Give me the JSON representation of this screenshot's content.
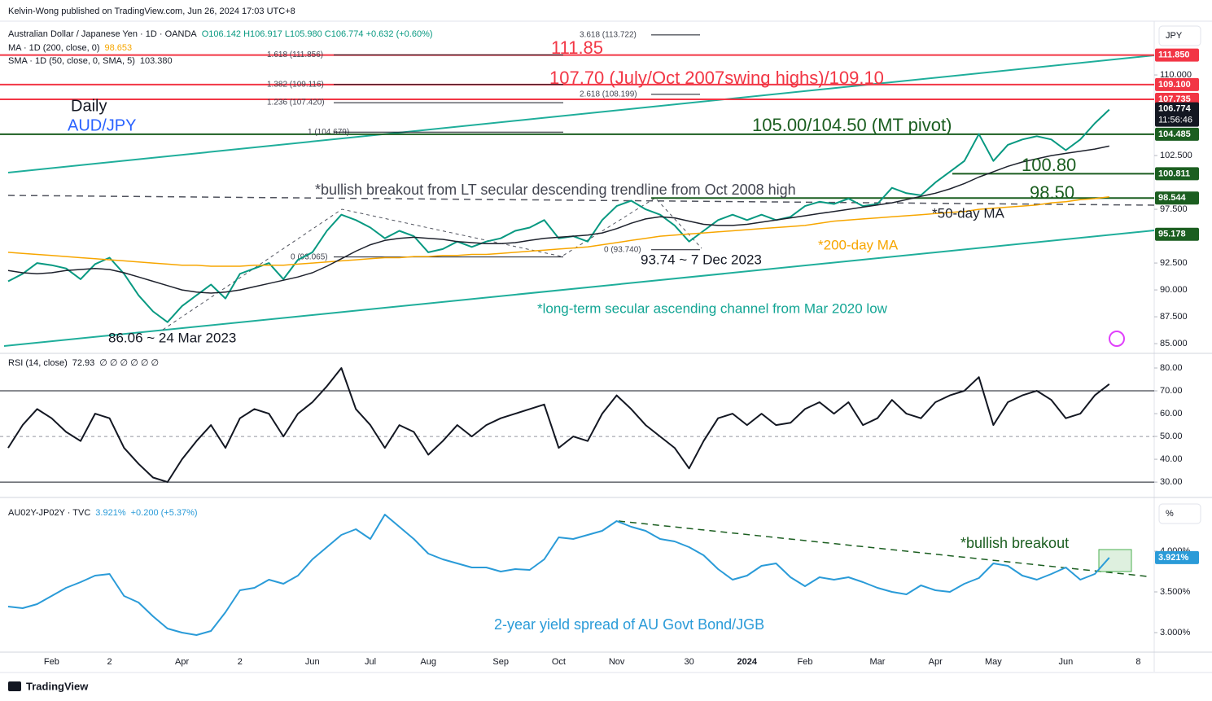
{
  "publisher": "Kelvin-Wong published on TradingView.com, Jun 26, 2024 17:03 UTC+8",
  "brand": "TradingView",
  "chart_data": [
    {
      "type": "line",
      "unit_label": "JPY",
      "countdown": "11:56:46",
      "last_color": "#131722",
      "categories": [
        null,
        null,
        null,
        "Feb",
        null,
        null,
        null,
        "2",
        null,
        null,
        null,
        null,
        "Apr",
        null,
        null,
        null,
        "2",
        null,
        null,
        null,
        null,
        "Jun",
        null,
        null,
        null,
        "Jul",
        null,
        null,
        null,
        "Aug",
        null,
        null,
        null,
        null,
        "Sep",
        null,
        null,
        null,
        "Oct",
        null,
        null,
        null,
        "Nov",
        null,
        null,
        null,
        null,
        "30",
        null,
        null,
        null,
        "2024",
        null,
        null,
        null,
        "Feb",
        null,
        null,
        null,
        null,
        "Mar",
        null,
        null,
        null,
        "Apr",
        null,
        null,
        null,
        "May",
        null,
        null,
        null,
        null,
        "Jun",
        null,
        null,
        null,
        null,
        "8"
      ],
      "ylim": [
        84.4,
        114.7
      ],
      "yticks": [
        {
          "value": 85,
          "label": "85.000"
        },
        {
          "value": 87.5,
          "label": "87.500"
        },
        {
          "value": 90,
          "label": "90.000"
        },
        {
          "value": 92.5,
          "label": "92.500"
        },
        {
          "value": 97.5,
          "label": "97.500"
        },
        {
          "value": 102.5,
          "label": "102.500"
        },
        {
          "value": 110,
          "label": "110.000"
        }
      ],
      "grid": false,
      "series": [
        {
          "name": "Australian Dollar / Japanese Yen · 1D · OANDA",
          "legend_label": "O106.142 H106.917 L105.980 C106.774 +0.632 (+0.60%)",
          "color": "#089981",
          "values": [
            90.8,
            91.5,
            92.5,
            92.3,
            92.0,
            91.0,
            92.4,
            93.0,
            91.5,
            89.5,
            88.0,
            87.0,
            88.5,
            89.5,
            90.5,
            89.2,
            91.5,
            92.0,
            92.5,
            91.0,
            92.8,
            93.5,
            95.5,
            97.0,
            96.5,
            95.8,
            94.8,
            95.5,
            95.0,
            93.5,
            93.8,
            94.5,
            94.0,
            94.5,
            94.8,
            95.5,
            95.8,
            96.5,
            94.8,
            95.0,
            94.5,
            96.5,
            97.8,
            98.3,
            97.5,
            97.0,
            96.0,
            94.5,
            95.5,
            96.5,
            97.0,
            96.5,
            97.0,
            96.5,
            96.8,
            97.8,
            98.2,
            98.0,
            98.5,
            97.8,
            98.0,
            99.5,
            99.0,
            98.8,
            100.0,
            101.0,
            102.0,
            104.5,
            102.0,
            103.5,
            104.0,
            104.3,
            104.0,
            103.0,
            104.0,
            105.5,
            106.774,
            null,
            null
          ]
        },
        {
          "name": "MA · 1D (200, close, 0)",
          "color": "#f7a600",
          "values": [
            93.5,
            93.4,
            93.3,
            93.2,
            93.1,
            93.0,
            92.9,
            92.8,
            92.7,
            92.6,
            92.5,
            92.4,
            92.3,
            92.3,
            92.2,
            92.2,
            92.2,
            92.3,
            92.3,
            92.3,
            92.4,
            92.5,
            92.6,
            92.7,
            92.8,
            92.9,
            93.0,
            93.0,
            93.1,
            93.1,
            93.2,
            93.2,
            93.3,
            93.3,
            93.4,
            93.5,
            93.6,
            93.7,
            93.8,
            93.9,
            94.0,
            94.2,
            94.4,
            94.6,
            94.8,
            95.0,
            95.1,
            95.2,
            95.3,
            95.4,
            95.5,
            95.6,
            95.7,
            95.8,
            95.9,
            96.0,
            96.2,
            96.4,
            96.5,
            96.6,
            96.7,
            96.8,
            96.9,
            97.0,
            97.1,
            97.2,
            97.3,
            97.5,
            97.6,
            97.7,
            97.8,
            97.9,
            98.1,
            98.2,
            98.4,
            98.5,
            98.653,
            null,
            null
          ]
        },
        {
          "name": "SMA · 1D (50, close, 0, SMA, 5)",
          "legend_label": "103.380",
          "color": "#1e222d",
          "values": [
            91.8,
            91.6,
            91.5,
            91.6,
            91.8,
            91.9,
            92.0,
            91.9,
            91.6,
            91.2,
            90.8,
            90.4,
            90.0,
            89.8,
            89.7,
            89.8,
            90.0,
            90.3,
            90.6,
            90.9,
            91.2,
            91.6,
            92.2,
            92.9,
            93.6,
            94.2,
            94.6,
            94.8,
            94.9,
            94.8,
            94.7,
            94.5,
            94.4,
            94.3,
            94.3,
            94.4,
            94.6,
            94.8,
            94.9,
            95.0,
            95.1,
            95.3,
            95.7,
            96.2,
            96.6,
            96.8,
            96.7,
            96.4,
            96.1,
            96.0,
            96.0,
            96.1,
            96.3,
            96.5,
            96.7,
            96.9,
            97.1,
            97.3,
            97.5,
            97.7,
            97.9,
            98.1,
            98.4,
            98.7,
            99.0,
            99.4,
            99.9,
            100.5,
            101.0,
            101.5,
            101.9,
            102.2,
            102.5,
            102.7,
            102.9,
            103.1,
            103.38,
            null,
            null
          ]
        }
      ],
      "levels": [
        {
          "value": 111.85,
          "label": "111.850",
          "color": "#f23645"
        },
        {
          "value": 109.1,
          "label": "109.100",
          "color": "#f23645"
        },
        {
          "value": 107.735,
          "label": "107.735",
          "color": "#f23645"
        },
        {
          "value": 104.485,
          "label": "104.485",
          "color": "#1b5e20"
        },
        {
          "value": 100.811,
          "label": "100.811",
          "color": "#1b5e20"
        },
        {
          "value": 98.544,
          "label": "98.544",
          "color": "#1b5e20"
        },
        {
          "value": 95.178,
          "label": "95.178",
          "color": "#1b5e20"
        }
      ],
      "fib_levels": [
        {
          "value": 113.722,
          "label": "3.618 (113.722)"
        },
        {
          "value": 111.856,
          "label": "1.618 (111.856)"
        },
        {
          "value": 109.116,
          "label": "1.382 (109.116)"
        },
        {
          "value": 108.199,
          "label": "2.618 (108.199)"
        },
        {
          "value": 107.42,
          "label": "1.236 (107.420)"
        },
        {
          "value": 104.679,
          "label": "1 (104.679)"
        },
        {
          "value": 93.065,
          "label": "0 (93.065)"
        },
        {
          "value": 93.74,
          "label": "0 (93.740)"
        }
      ],
      "annotations": [
        {
          "text": "111.85",
          "color": "#f23645"
        },
        {
          "text": "107.70 (July/Oct 2007swing highs)/109.10",
          "color": "#f23645"
        },
        {
          "text": "Daily",
          "color": "#131722"
        },
        {
          "text": "AUD/JPY",
          "color": "#2962ff"
        },
        {
          "text": "105.00/104.50 (MT pivot)",
          "color": "#1b5e20"
        },
        {
          "text": "100.80",
          "color": "#1b5e20"
        },
        {
          "text": "98.50",
          "color": "#1b5e20"
        },
        {
          "text": "*bullish breakout from LT secular descending trendline from Oct 2008 high",
          "color": "#434651"
        },
        {
          "text": "*50-day MA",
          "color": "#1e222d"
        },
        {
          "text": "*200-day MA",
          "color": "#f7a600"
        },
        {
          "text": "93.74 ~ 7 Dec 2023",
          "color": "#131722"
        },
        {
          "text": "86.06 ~ 24 Mar 2023",
          "color": "#131722"
        },
        {
          "text": "*long-term secular ascending channel from Mar 2020 low",
          "color": "#12a594"
        }
      ]
    },
    {
      "type": "line",
      "ylim": [
        25.4,
        85
      ],
      "yticks": [
        {
          "value": 30,
          "label": "30.00"
        },
        {
          "value": 40,
          "label": "40.00"
        },
        {
          "value": 50,
          "label": "50.00"
        },
        {
          "value": 60,
          "label": "60.00"
        },
        {
          "value": 70,
          "label": "70.00"
        },
        {
          "value": 80,
          "label": "80.00"
        }
      ],
      "grid": false,
      "legend_extra": "∅ ∅ ∅ ∅ ∅ ∅",
      "series": [
        {
          "name": "RSI (14, close)",
          "color": "#131722",
          "values": [
            45,
            55,
            62,
            58,
            52,
            48,
            60,
            58,
            45,
            38,
            32,
            30,
            40,
            48,
            55,
            45,
            58,
            62,
            60,
            50,
            60,
            65,
            72,
            80,
            62,
            55,
            45,
            55,
            52,
            42,
            48,
            55,
            50,
            55,
            58,
            60,
            62,
            64,
            45,
            50,
            48,
            60,
            68,
            62,
            55,
            50,
            45,
            36,
            48,
            58,
            60,
            55,
            60,
            55,
            56,
            62,
            65,
            60,
            65,
            55,
            58,
            66,
            60,
            58,
            65,
            68,
            70,
            76,
            55,
            65,
            68,
            70,
            66,
            58,
            60,
            68,
            72.93,
            null,
            null
          ]
        }
      ],
      "levels": [
        {
          "value": 70,
          "color": "#131722",
          "style": "solid"
        },
        {
          "value": 50,
          "color": "#9598a1",
          "style": "dashed"
        },
        {
          "value": 30,
          "color": "#131722",
          "style": "solid"
        }
      ]
    },
    {
      "type": "line",
      "unit_label": "%",
      "ylim": [
        2.77,
        4.62
      ],
      "yticks": [
        {
          "value": 3,
          "label": "3.000%"
        },
        {
          "value": 3.5,
          "label": "3.500%"
        },
        {
          "value": 4,
          "label": "4.000%"
        }
      ],
      "grid": false,
      "legend_extra": "+0.200 (+5.37%)",
      "series": [
        {
          "name": "AU02Y-JP02Y · TVC",
          "legend_label": "3.921%",
          "color": "#2a9bd8",
          "values": [
            3.32,
            3.3,
            3.35,
            3.45,
            3.55,
            3.62,
            3.7,
            3.72,
            3.45,
            3.37,
            3.2,
            3.05,
            3.0,
            2.97,
            3.02,
            3.25,
            3.52,
            3.55,
            3.65,
            3.6,
            3.7,
            3.9,
            4.05,
            4.2,
            4.27,
            4.15,
            4.45,
            4.3,
            4.15,
            3.97,
            3.9,
            3.85,
            3.8,
            3.8,
            3.75,
            3.78,
            3.77,
            3.9,
            4.17,
            4.15,
            4.2,
            4.25,
            4.37,
            4.3,
            4.25,
            4.15,
            4.12,
            4.05,
            3.95,
            3.78,
            3.65,
            3.7,
            3.82,
            3.85,
            3.68,
            3.57,
            3.68,
            3.65,
            3.68,
            3.62,
            3.55,
            3.5,
            3.47,
            3.58,
            3.52,
            3.5,
            3.6,
            3.67,
            3.85,
            3.82,
            3.7,
            3.65,
            3.72,
            3.8,
            3.65,
            3.72,
            3.921,
            null,
            null
          ]
        }
      ],
      "levels": [
        {
          "value": 3.921,
          "label": "3.921%",
          "color": "#2a9bd8"
        }
      ],
      "annotations": [
        {
          "text": "*bullish breakout",
          "color": "#1b5e20"
        },
        {
          "text": "2-year yield spread of AU Govt Bond/JGB",
          "color": "#2a9bd8"
        }
      ]
    }
  ]
}
